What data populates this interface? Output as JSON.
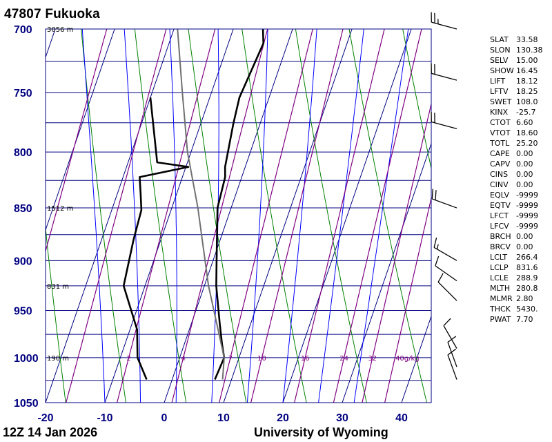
{
  "header": {
    "station": "47807  Fukuoka"
  },
  "footer": {
    "time": "12Z 14 Jan 2026",
    "credit": "University of Wyoming"
  },
  "colors": {
    "isotherm": "#000080",
    "isobar": "#000080",
    "dry_adiabat": "#008000",
    "moist_adiabat": "#0000ff",
    "mixing_ratio": "#800080",
    "sounding": "#000000",
    "parcel": "#707070",
    "pressure_label": "#000080"
  },
  "chart_data": {
    "type": "line",
    "diagram": "skew-t log-p",
    "xlabel": "",
    "ylabel": "",
    "x_ticks": [
      -20,
      -10,
      0,
      10,
      20,
      30,
      40
    ],
    "y_ticks": [
      700,
      750,
      800,
      850,
      900,
      950,
      1000,
      1050
    ],
    "xlim": [
      -20,
      45
    ],
    "ylim": [
      1050,
      700
    ],
    "y_scale": "log",
    "height_labels": [
      {
        "pressure": 700,
        "text": "3056 m"
      },
      {
        "pressure": 850,
        "text": "1512 m"
      },
      {
        "pressure": 925,
        "text": "831 m"
      },
      {
        "pressure": 1000,
        "text": "190 m"
      }
    ],
    "mixing_ratio_labels": [
      {
        "value": 2,
        "text": "2"
      },
      {
        "value": 4,
        "text": "4"
      },
      {
        "value": 7,
        "text": "7"
      },
      {
        "value": 10,
        "text": "10"
      },
      {
        "value": 16,
        "text": "16"
      },
      {
        "value": 24,
        "text": "24"
      },
      {
        "value": 32,
        "text": "32"
      },
      {
        "value": 40,
        "text": "40g/kg"
      }
    ],
    "series": [
      {
        "kind": "temperature",
        "points": [
          {
            "p": 1024,
            "t": 7.2
          },
          {
            "p": 1000,
            "t": 7.5
          },
          {
            "p": 986,
            "t": 6.4
          },
          {
            "p": 964,
            "t": 4.8
          },
          {
            "p": 925,
            "t": 2.0
          },
          {
            "p": 900,
            "t": 0.6
          },
          {
            "p": 850,
            "t": -2.3
          },
          {
            "p": 822,
            "t": -2.8
          },
          {
            "p": 813,
            "t": -3.4
          },
          {
            "p": 776,
            "t": -4.5
          },
          {
            "p": 754,
            "t": -5.0
          },
          {
            "p": 711,
            "t": -4.1
          },
          {
            "p": 700,
            "t": -5.0
          }
        ]
      },
      {
        "kind": "dewpoint",
        "points": [
          {
            "p": 1024,
            "t": -4.3
          },
          {
            "p": 1000,
            "t": -7.1
          },
          {
            "p": 970,
            "t": -8.8
          },
          {
            "p": 925,
            "t": -13.6
          },
          {
            "p": 880,
            "t": -14.6
          },
          {
            "p": 852,
            "t": -15.0
          },
          {
            "p": 838,
            "t": -16.0
          },
          {
            "p": 822,
            "t": -17.2
          },
          {
            "p": 813,
            "t": -9.6
          },
          {
            "p": 809,
            "t": -15.1
          },
          {
            "p": 754,
            "t": -20.0
          }
        ]
      },
      {
        "kind": "parcel",
        "points": [
          {
            "p": 1024,
            "t": 8.5
          },
          {
            "p": 1000,
            "t": 7.5
          },
          {
            "p": 925,
            "t": 0.7
          },
          {
            "p": 850,
            "t": -5.6
          },
          {
            "p": 800,
            "t": -10.6
          },
          {
            "p": 750,
            "t": -14.9
          },
          {
            "p": 700,
            "t": -19.4
          }
        ]
      }
    ],
    "wind_barbs": [
      {
        "p": 1024,
        "dir": 340,
        "kt": 10
      },
      {
        "p": 1010,
        "dir": 340,
        "kt": 10
      },
      {
        "p": 990,
        "dir": 330,
        "kt": 10
      },
      {
        "p": 940,
        "dir": 315,
        "kt": 10
      },
      {
        "p": 920,
        "dir": 305,
        "kt": 10
      },
      {
        "p": 900,
        "dir": 300,
        "kt": 15
      },
      {
        "p": 850,
        "dir": 290,
        "kt": 20
      },
      {
        "p": 780,
        "dir": 285,
        "kt": 20
      },
      {
        "p": 740,
        "dir": 285,
        "kt": 20
      },
      {
        "p": 700,
        "dir": 285,
        "kt": 25
      }
    ],
    "indices": [
      {
        "key": "SLAT",
        "value": "33.58"
      },
      {
        "key": "SLON",
        "value": "130.38"
      },
      {
        "key": "SELV",
        "value": "15.00"
      },
      {
        "key": "SHOW",
        "value": "16.45"
      },
      {
        "key": "LIFT",
        "value": "18.12"
      },
      {
        "key": "LFTV",
        "value": "18.25"
      },
      {
        "key": "SWET",
        "value": "108.0"
      },
      {
        "key": "KINX",
        "value": "-25.7"
      },
      {
        "key": "CTOT",
        "value": "6.60"
      },
      {
        "key": "VTOT",
        "value": "18.60"
      },
      {
        "key": "TOTL",
        "value": "25.20"
      },
      {
        "key": "CAPE",
        "value": "0.00"
      },
      {
        "key": "CAPV",
        "value": "0.00"
      },
      {
        "key": "CINS",
        "value": "0.00"
      },
      {
        "key": "CINV",
        "value": "0.00"
      },
      {
        "key": "EQLV",
        "value": "-9999"
      },
      {
        "key": "EQTV",
        "value": "-9999"
      },
      {
        "key": "LFCT",
        "value": "-9999"
      },
      {
        "key": "LFCV",
        "value": "-9999"
      },
      {
        "key": "BRCH",
        "value": "0.00"
      },
      {
        "key": "BRCV",
        "value": "0.00"
      },
      {
        "key": "LCLT",
        "value": "266.4"
      },
      {
        "key": "LCLP",
        "value": "831.6"
      },
      {
        "key": "LCLE",
        "value": "288.9"
      },
      {
        "key": "MLTH",
        "value": "280.8"
      },
      {
        "key": "MLMR",
        "value": "2.80"
      },
      {
        "key": "THCK",
        "value": "5430."
      },
      {
        "key": "PWAT",
        "value": "7.70"
      }
    ]
  }
}
